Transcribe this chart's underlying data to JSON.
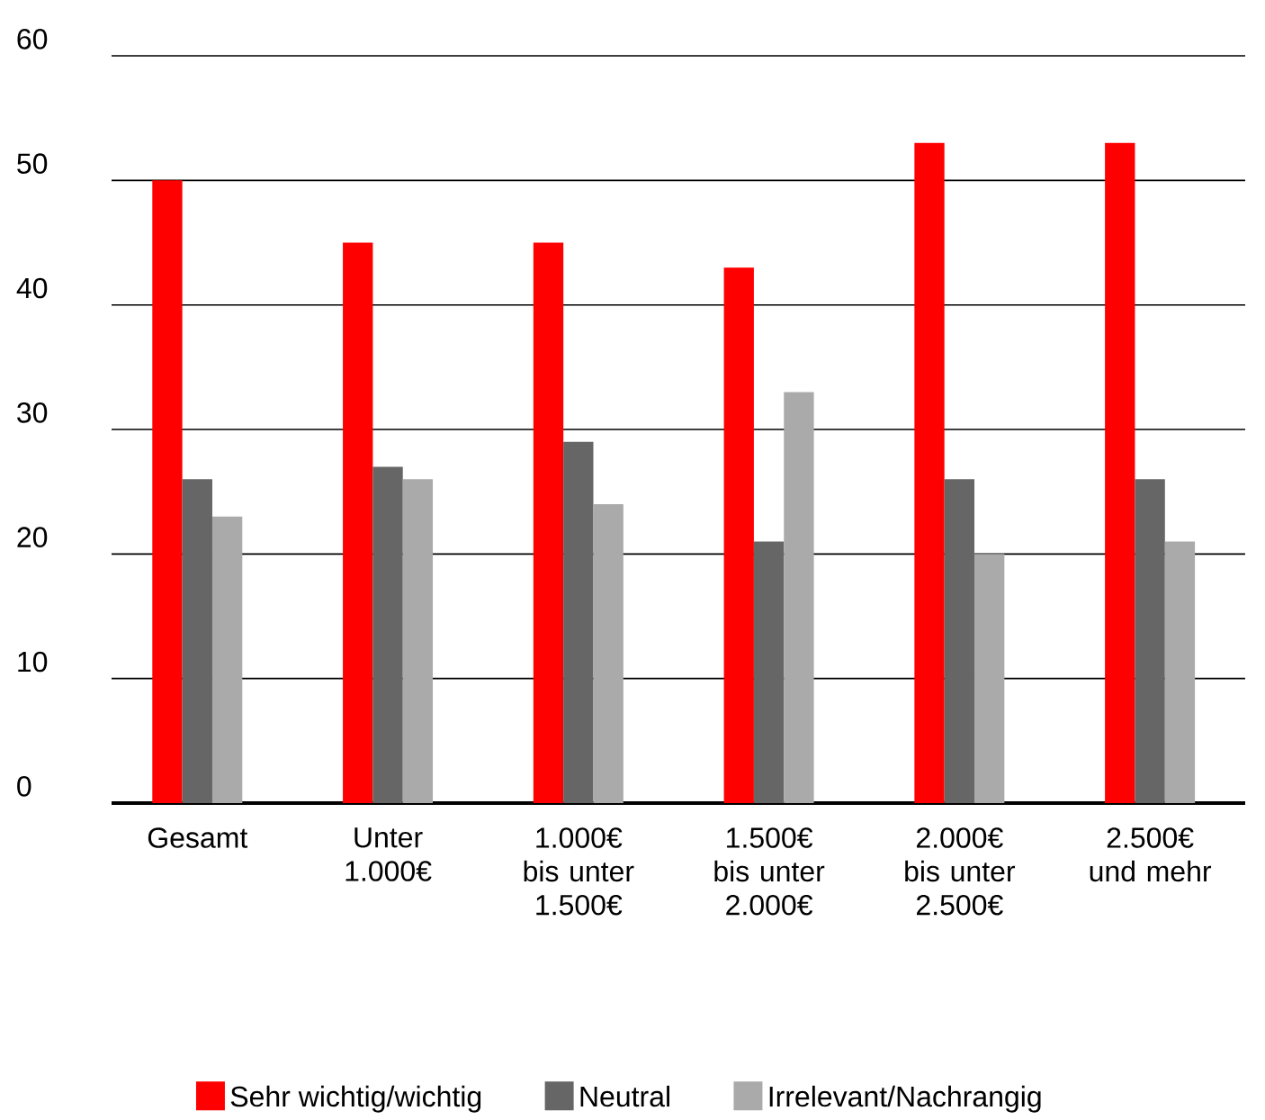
{
  "chart_data": {
    "type": "bar",
    "categories": [
      "Gesamt",
      "Unter 1.000€",
      "1.000€ bis unter 1.500€",
      "1.500€ bis unter 2.000€",
      "2.000€ bis unter 2.500€",
      "2.500€ und mehr"
    ],
    "series": [
      {
        "name": "Sehr wichtig/wichtig",
        "color": "#ff0000",
        "values": [
          50,
          45,
          45,
          43,
          53,
          53
        ]
      },
      {
        "name": "Neutral",
        "color": "#666666",
        "values": [
          26,
          27,
          29,
          21,
          26,
          26
        ]
      },
      {
        "name": "Irrelevant/Nachrangig",
        "color": "#aaaaaa",
        "values": [
          23,
          26,
          24,
          33,
          20,
          21
        ]
      }
    ],
    "ylim": [
      0,
      60
    ],
    "yticks": [
      0,
      10,
      20,
      30,
      40,
      50,
      60
    ],
    "grid": "y",
    "legend": "bottom"
  }
}
